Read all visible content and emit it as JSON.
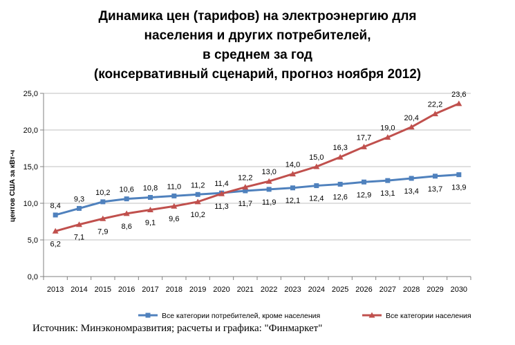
{
  "chart_data": {
    "type": "line",
    "title_lines": [
      "Динамика цен (тарифов) на электроэнергию для",
      "населения и других потребителей,",
      "в среднем за год",
      "(консервативный сценарий, прогноз ноября 2012)"
    ],
    "ylabel": "центов США за кВт-ч",
    "xlabel": "",
    "ylim": [
      0,
      25
    ],
    "yticks": [
      0,
      5,
      10,
      15,
      20,
      25
    ],
    "ytick_labels": [
      "0,0",
      "5,0",
      "10,0",
      "15,0",
      "20,0",
      "25,0"
    ],
    "grid": true,
    "legend_position": "bottom",
    "categories": [
      "2013",
      "2014",
      "2015",
      "2016",
      "2017",
      "2018",
      "2019",
      "2020",
      "2021",
      "2022",
      "2023",
      "2024",
      "2025",
      "2026",
      "2027",
      "2028",
      "2029",
      "2030"
    ],
    "series": [
      {
        "name": "Все категории потребителей,  кроме населения",
        "color": "#4f81bd",
        "marker": "square",
        "values": [
          8.4,
          9.3,
          10.2,
          10.6,
          10.8,
          11.0,
          11.2,
          11.4,
          11.7,
          11.9,
          12.1,
          12.4,
          12.6,
          12.9,
          13.1,
          13.4,
          13.7,
          13.9
        ],
        "labels": [
          "8,4",
          "9,3",
          "10,2",
          "10,6",
          "10,8",
          "11,0",
          "11,2",
          "11,4",
          "11,7",
          "11,9",
          "12,1",
          "12,4",
          "12,6",
          "12,9",
          "13,1",
          "13,4",
          "13,7",
          "13,9"
        ]
      },
      {
        "name": "Все категории населения",
        "color": "#c0504d",
        "marker": "triangle",
        "values": [
          6.2,
          7.1,
          7.9,
          8.6,
          9.1,
          9.6,
          10.2,
          11.3,
          12.2,
          13.0,
          14.0,
          15.0,
          16.3,
          17.7,
          19.0,
          20.4,
          22.2,
          23.6
        ],
        "labels": [
          "6,2",
          "7,1",
          "7,9",
          "8,6",
          "9,1",
          "9,6",
          "10,2",
          "11,3",
          "12,2",
          "13,0",
          "14,0",
          "15,0",
          "16,3",
          "17,7",
          "19,0",
          "20,4",
          "22,2",
          "23,6"
        ]
      }
    ]
  },
  "source_text": "Источник: Минэкономразвития; расчеты и графика: \"Финмаркет\""
}
